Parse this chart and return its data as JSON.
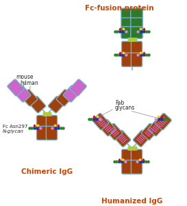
{
  "colors": {
    "brown": "#A0410D",
    "green": "#2D7A2D",
    "purple": "#CC66CC",
    "hinge": "#AACC44",
    "outline": "#7AAFC8",
    "orange": "#CC4400",
    "black": "#222222",
    "yellow": "#FFD700",
    "blue": "#1133AA",
    "green2": "#228822",
    "red": "#CC1111",
    "pink": "#DD88DD",
    "gray": "#888888",
    "white": "#FFFFFF"
  },
  "text": {
    "fc_fusion": "Fc-fusion protein",
    "chimeric": "Chimeric IgG",
    "humanized": "Humanized IgG",
    "mouse": "mouse",
    "human": "human",
    "fc_asn": "Fc Asn297",
    "n_glycan": "N-glycan",
    "fab": "Fab",
    "glycans": "glycans"
  }
}
